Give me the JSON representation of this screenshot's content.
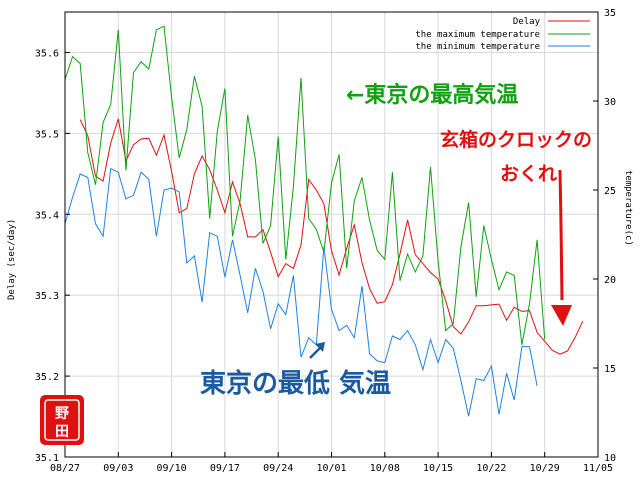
{
  "chart_data": {
    "type": "line",
    "title": "",
    "ylabel": "Delay (sec/day)",
    "y2label": "temperature(c)",
    "xlabel": "",
    "x_ticks": [
      "08/27",
      "09/03",
      "09/10",
      "09/17",
      "09/24",
      "10/01",
      "10/08",
      "10/15",
      "10/22",
      "10/29",
      "11/05"
    ],
    "ylim": [
      35.1,
      35.65
    ],
    "y_ticks": [
      "35.1",
      "35.2",
      "35.3",
      "35.4",
      "35.5",
      "35.6"
    ],
    "y2lim": [
      10,
      35
    ],
    "y2_ticks": [
      "10",
      "15",
      "20",
      "25",
      "30",
      "35"
    ],
    "grid": true,
    "legend": "top-right",
    "series": [
      {
        "name": "Delay",
        "axis": "left",
        "color": "#e01010",
        "start_day": 2,
        "values": [
          35.517,
          35.497,
          35.447,
          35.441,
          35.488,
          35.518,
          35.466,
          35.486,
          35.493,
          35.494,
          35.473,
          35.498,
          35.453,
          35.402,
          35.407,
          35.45,
          35.472,
          35.455,
          35.43,
          35.402,
          35.44,
          35.413,
          35.372,
          35.372,
          35.381,
          35.353,
          35.323,
          35.339,
          35.333,
          35.362,
          35.443,
          35.43,
          35.413,
          35.355,
          35.325,
          35.358,
          35.387,
          35.34,
          35.308,
          35.29,
          35.292,
          35.313,
          35.351,
          35.393,
          35.35,
          35.339,
          35.328,
          35.32,
          35.293,
          35.261,
          35.252,
          35.267,
          35.287,
          35.287,
          35.288,
          35.289,
          35.269,
          35.285,
          35.28,
          35.281,
          35.254,
          35.243,
          35.232,
          35.227,
          35.231,
          35.248,
          35.268
        ]
      },
      {
        "name": "the maximum temperature",
        "axis": "right",
        "color": "#10a010",
        "start_day": 0,
        "values": [
          31.2,
          32.5,
          32.1,
          27.1,
          25.3,
          28.8,
          29.8,
          34.0,
          26.1,
          31.6,
          32.2,
          31.8,
          34.0,
          34.2,
          30.2,
          26.8,
          28.4,
          31.4,
          29.7,
          23.4,
          28.3,
          30.7,
          22.4,
          24.4,
          29.2,
          26.7,
          22.0,
          23.0,
          28.0,
          21.1,
          25.2,
          31.3,
          23.4,
          22.8,
          21.5,
          25.4,
          27.0,
          20.6,
          24.4,
          25.7,
          23.3,
          21.6,
          21.1,
          26.0,
          19.9,
          21.4,
          20.4,
          21.3,
          26.3,
          21.0,
          17.1,
          17.5,
          21.8,
          24.3,
          19.0,
          23.0,
          21.1,
          19.4,
          20.4,
          20.2,
          16.3,
          18.6,
          22.2,
          16.6
        ]
      },
      {
        "name": "the minimum temperature",
        "axis": "right",
        "color": "#2080e0",
        "start_day": 0,
        "values": [
          23.1,
          24.6,
          25.9,
          25.7,
          23.1,
          22.4,
          26.2,
          26.0,
          24.5,
          24.7,
          26.0,
          25.6,
          22.4,
          25.0,
          25.1,
          24.9,
          20.9,
          21.3,
          18.7,
          22.6,
          22.4,
          20.1,
          22.2,
          20.2,
          18.1,
          20.6,
          19.3,
          17.2,
          18.6,
          18.0,
          20.2,
          15.6,
          16.7,
          16.3,
          21.8,
          18.3,
          17.1,
          17.4,
          16.7,
          19.6,
          15.8,
          15.4,
          15.3,
          16.8,
          16.6,
          17.1,
          16.3,
          14.9,
          16.6,
          15.3,
          16.6,
          16.1,
          14.3,
          12.3,
          14.4,
          14.3,
          15.1,
          12.4,
          14.7,
          13.2,
          16.2,
          16.2,
          14.0
        ]
      }
    ],
    "annotations": [
      {
        "text": "←東京の最高気温",
        "color": "#10a010"
      },
      {
        "text": "玄箱のクロックの",
        "color": "#e01010"
      },
      {
        "text": "おくれ",
        "color": "#e01010"
      },
      {
        "text": "東京の最低 気温",
        "color": "#1a5aa0"
      }
    ],
    "seal": {
      "text": "野田",
      "color": "#e01010"
    }
  }
}
